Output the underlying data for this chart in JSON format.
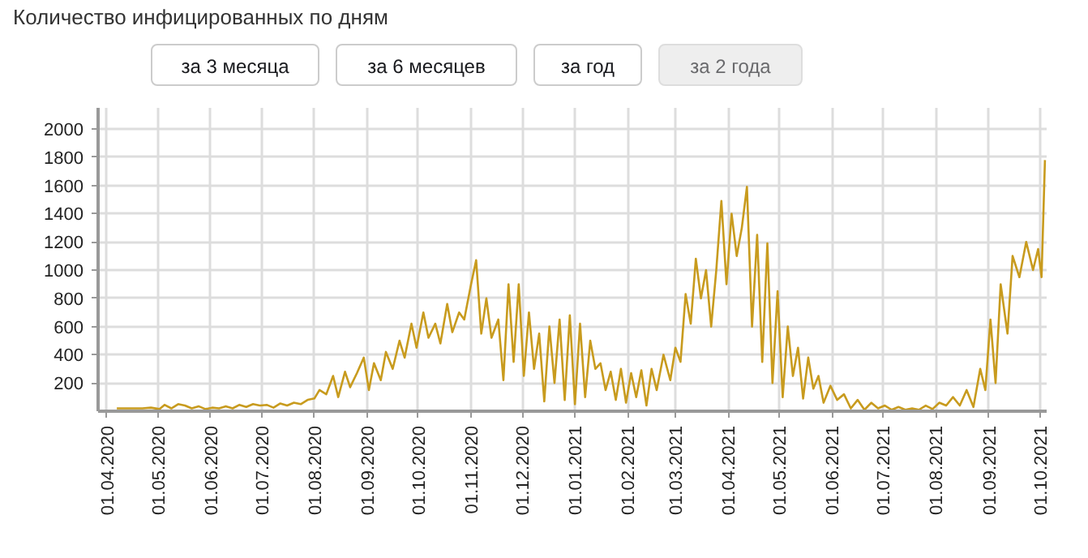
{
  "chart_data": {
    "type": "line",
    "title": "Количество инфицированных по дням",
    "annotations": [
      "за 3 месяца",
      "за 6 месяцев",
      "за год",
      "за 2 года"
    ],
    "x": [
      "2020-04-07",
      "2020-04-12",
      "2020-04-17",
      "2020-04-22",
      "2020-04-27",
      "2020-05-02",
      "2020-05-05",
      "2020-05-09",
      "2020-05-13",
      "2020-05-17",
      "2020-05-21",
      "2020-05-25",
      "2020-05-29",
      "2020-06-02",
      "2020-06-06",
      "2020-06-10",
      "2020-06-14",
      "2020-06-18",
      "2020-06-22",
      "2020-06-26",
      "2020-06-30",
      "2020-07-04",
      "2020-07-08",
      "2020-07-12",
      "2020-07-16",
      "2020-07-20",
      "2020-07-24",
      "2020-07-28",
      "2020-08-01",
      "2020-08-04",
      "2020-08-08",
      "2020-08-12",
      "2020-08-15",
      "2020-08-19",
      "2020-08-22",
      "2020-08-26",
      "2020-08-30",
      "2020-09-02",
      "2020-09-05",
      "2020-09-09",
      "2020-09-12",
      "2020-09-16",
      "2020-09-20",
      "2020-09-23",
      "2020-09-27",
      "2020-09-30",
      "2020-10-04",
      "2020-10-07",
      "2020-10-11",
      "2020-10-14",
      "2020-10-18",
      "2020-10-21",
      "2020-10-25",
      "2020-10-28",
      "2020-11-01",
      "2020-11-04",
      "2020-11-07",
      "2020-11-10",
      "2020-11-13",
      "2020-11-17",
      "2020-11-20",
      "2020-11-23",
      "2020-11-26",
      "2020-11-29",
      "2020-12-02",
      "2020-12-05",
      "2020-12-08",
      "2020-12-11",
      "2020-12-14",
      "2020-12-17",
      "2020-12-20",
      "2020-12-23",
      "2020-12-26",
      "2020-12-29",
      "2021-01-01",
      "2021-01-04",
      "2021-01-07",
      "2021-01-10",
      "2021-01-13",
      "2021-01-16",
      "2021-01-19",
      "2021-01-22",
      "2021-01-25",
      "2021-01-28",
      "2021-01-31",
      "2021-02-03",
      "2021-02-06",
      "2021-02-09",
      "2021-02-12",
      "2021-02-15",
      "2021-02-18",
      "2021-02-22",
      "2021-02-26",
      "2021-03-01",
      "2021-03-04",
      "2021-03-07",
      "2021-03-10",
      "2021-03-13",
      "2021-03-16",
      "2021-03-19",
      "2021-03-22",
      "2021-03-25",
      "2021-03-28",
      "2021-03-31",
      "2021-04-03",
      "2021-04-06",
      "2021-04-09",
      "2021-04-12",
      "2021-04-15",
      "2021-04-18",
      "2021-04-21",
      "2021-04-24",
      "2021-04-27",
      "2021-04-30",
      "2021-05-03",
      "2021-05-06",
      "2021-05-09",
      "2021-05-12",
      "2021-05-15",
      "2021-05-18",
      "2021-05-21",
      "2021-05-24",
      "2021-05-27",
      "2021-05-31",
      "2021-06-04",
      "2021-06-08",
      "2021-06-12",
      "2021-06-16",
      "2021-06-20",
      "2021-06-24",
      "2021-06-28",
      "2021-07-02",
      "2021-07-06",
      "2021-07-10",
      "2021-07-14",
      "2021-07-18",
      "2021-07-22",
      "2021-07-26",
      "2021-07-30",
      "2021-08-03",
      "2021-08-07",
      "2021-08-11",
      "2021-08-15",
      "2021-08-19",
      "2021-08-23",
      "2021-08-27",
      "2021-08-30",
      "2021-09-02",
      "2021-09-05",
      "2021-09-08",
      "2021-09-12",
      "2021-09-15",
      "2021-09-19",
      "2021-09-23",
      "2021-09-27",
      "2021-09-30",
      "2021-10-02",
      "2021-10-04"
    ],
    "series": [
      {
        "color": "#c89b1e",
        "values": [
          20,
          20,
          20,
          20,
          25,
          15,
          45,
          20,
          50,
          40,
          20,
          35,
          15,
          25,
          20,
          35,
          20,
          45,
          30,
          50,
          40,
          45,
          25,
          55,
          40,
          60,
          50,
          80,
          90,
          150,
          120,
          250,
          100,
          280,
          170,
          270,
          380,
          150,
          340,
          220,
          420,
          300,
          500,
          380,
          620,
          450,
          700,
          520,
          620,
          480,
          760,
          560,
          700,
          650,
          900,
          1070,
          550,
          800,
          520,
          650,
          220,
          900,
          350,
          900,
          250,
          700,
          300,
          550,
          70,
          600,
          200,
          650,
          80,
          680,
          50,
          620,
          100,
          500,
          300,
          340,
          150,
          280,
          80,
          300,
          60,
          270,
          100,
          290,
          40,
          300,
          150,
          400,
          220,
          450,
          350,
          830,
          620,
          1080,
          800,
          1000,
          600,
          1000,
          1490,
          900,
          1400,
          1100,
          1300,
          1590,
          600,
          1250,
          350,
          1190,
          200,
          850,
          100,
          600,
          250,
          450,
          90,
          380,
          160,
          250,
          60,
          180,
          80,
          120,
          20,
          80,
          10,
          60,
          20,
          40,
          10,
          30,
          10,
          20,
          10,
          40,
          15,
          60,
          40,
          100,
          40,
          150,
          30,
          300,
          150,
          650,
          200,
          900,
          550,
          1100,
          950,
          1200,
          1000,
          1150,
          950,
          1780
        ]
      }
    ],
    "xlim": [
      "2020-03-27",
      "2021-10-05"
    ],
    "xticks": [
      {
        "value": "2020-04-01",
        "label": "01.04.2020"
      },
      {
        "value": "2020-05-01",
        "label": "01.05.2020"
      },
      {
        "value": "2020-06-01",
        "label": "01.06.2020"
      },
      {
        "value": "2020-07-01",
        "label": "01.07.2020"
      },
      {
        "value": "2020-08-01",
        "label": "01.08.2020"
      },
      {
        "value": "2020-09-01",
        "label": "01.09.2020"
      },
      {
        "value": "2020-10-01",
        "label": "01.10.2020"
      },
      {
        "value": "2020-11-01",
        "label": "01.11.2020"
      },
      {
        "value": "2020-12-01",
        "label": "01.12.2020"
      },
      {
        "value": "2021-01-01",
        "label": "01.01.2021"
      },
      {
        "value": "2021-02-01",
        "label": "01.02.2021"
      },
      {
        "value": "2021-03-01",
        "label": "01.03.2021"
      },
      {
        "value": "2021-04-01",
        "label": "01.04.2021"
      },
      {
        "value": "2021-05-01",
        "label": "01.05.2021"
      },
      {
        "value": "2021-06-01",
        "label": "01.06.2021"
      },
      {
        "value": "2021-07-01",
        "label": "01.07.2021"
      },
      {
        "value": "2021-08-01",
        "label": "01.08.2021"
      },
      {
        "value": "2021-09-01",
        "label": "01.09.2021"
      },
      {
        "value": "2021-10-01",
        "label": "01.10.2021"
      }
    ],
    "ylim": [
      0,
      2150
    ],
    "yticks": [
      200,
      400,
      600,
      800,
      1000,
      1200,
      1400,
      1600,
      1800,
      2000
    ],
    "grid": true,
    "marker": "none",
    "line_style": "solid"
  }
}
